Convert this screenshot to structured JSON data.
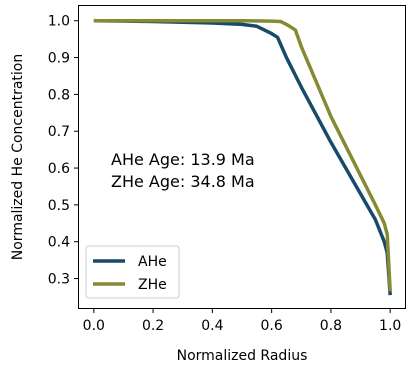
{
  "chart_data": {
    "type": "line",
    "xlabel": "Normalized Radius",
    "ylabel": "Normalized He Concentration",
    "xlim": [
      -0.05,
      1.05
    ],
    "ylim": [
      0.22,
      1.04
    ],
    "xticks": [
      0.0,
      0.2,
      0.4,
      0.6,
      0.8,
      1.0
    ],
    "yticks": [
      0.3,
      0.4,
      0.5,
      0.6,
      0.7,
      0.8,
      0.9,
      1.0
    ],
    "xtick_labels": [
      "0.0",
      "0.2",
      "0.4",
      "0.6",
      "0.8",
      "1.0"
    ],
    "ytick_labels": [
      "0.3",
      "0.4",
      "0.5",
      "0.6",
      "0.7",
      "0.8",
      "0.9",
      "1.0"
    ],
    "grid": false,
    "legend_position": "lower-left",
    "annotation": {
      "line1": "AHe Age: 13.9 Ma",
      "line2": "ZHe Age: 34.8 Ma"
    },
    "series": [
      {
        "name": "AHe",
        "color": "#184a6a",
        "x": [
          0.0,
          0.2,
          0.4,
          0.5,
          0.55,
          0.6,
          0.62,
          0.65,
          0.7,
          0.8,
          0.9,
          0.95,
          0.98,
          0.99,
          1.0
        ],
        "y": [
          1.0,
          0.998,
          0.994,
          0.99,
          0.985,
          0.965,
          0.955,
          0.9,
          0.82,
          0.67,
          0.53,
          0.46,
          0.4,
          0.37,
          0.255
        ]
      },
      {
        "name": "ZHe",
        "color": "#868a32",
        "x": [
          0.0,
          0.2,
          0.4,
          0.5,
          0.6,
          0.63,
          0.65,
          0.68,
          0.7,
          0.8,
          0.9,
          0.95,
          0.98,
          0.99,
          1.0
        ],
        "y": [
          1.0,
          1.0,
          1.0,
          1.0,
          0.999,
          0.998,
          0.99,
          0.975,
          0.93,
          0.74,
          0.58,
          0.5,
          0.45,
          0.42,
          0.265
        ]
      }
    ]
  }
}
